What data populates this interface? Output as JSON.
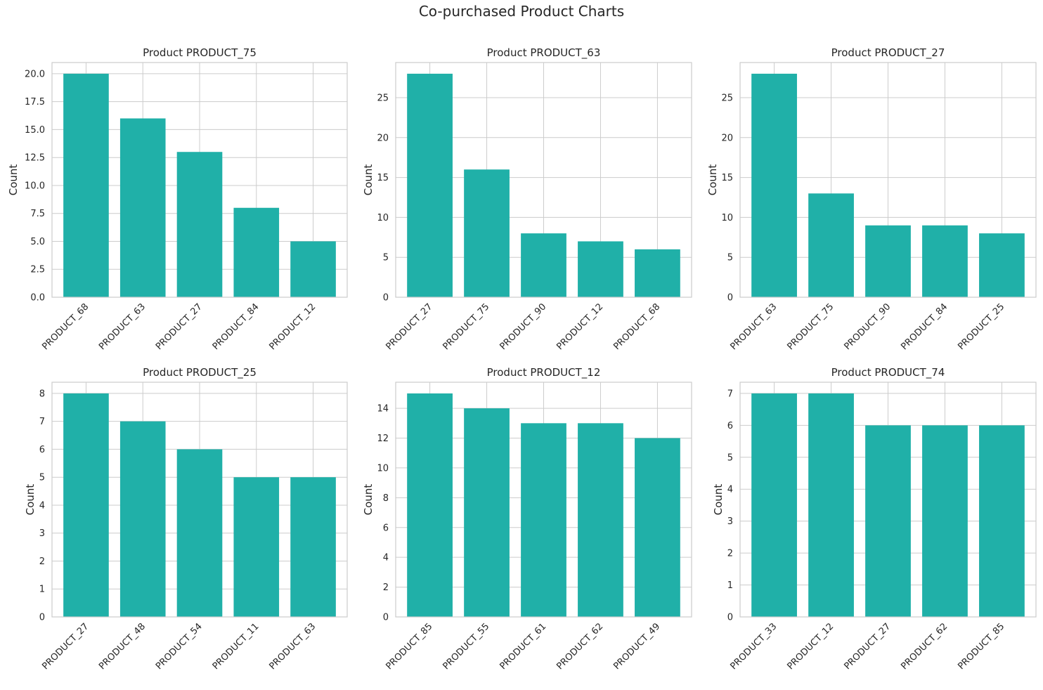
{
  "figure": {
    "title": "Co-purchased Product Charts",
    "bar_color": "#20b0a8",
    "grid_color": "#cccccc",
    "text_color": "#262626"
  },
  "chart_data": [
    {
      "type": "bar",
      "title": "Product PRODUCT_75",
      "xlabel": "",
      "ylabel": "Count",
      "categories": [
        "PRODUCT_68",
        "PRODUCT_63",
        "PRODUCT_27",
        "PRODUCT_84",
        "PRODUCT_12"
      ],
      "values": [
        20,
        16,
        13,
        8,
        5
      ],
      "ylim": [
        0,
        21
      ],
      "yticks": [
        "0.0",
        "2.5",
        "5.0",
        "7.5",
        "10.0",
        "12.5",
        "15.0",
        "17.5",
        "20.0"
      ],
      "grid": true
    },
    {
      "type": "bar",
      "title": "Product PRODUCT_63",
      "xlabel": "",
      "ylabel": "Count",
      "categories": [
        "PRODUCT_27",
        "PRODUCT_75",
        "PRODUCT_90",
        "PRODUCT_12",
        "PRODUCT_68"
      ],
      "values": [
        28,
        16,
        8,
        7,
        6
      ],
      "ylim": [
        0,
        29.4
      ],
      "yticks": [
        "0",
        "5",
        "10",
        "15",
        "20",
        "25"
      ],
      "grid": true
    },
    {
      "type": "bar",
      "title": "Product PRODUCT_27",
      "xlabel": "",
      "ylabel": "Count",
      "categories": [
        "PRODUCT_63",
        "PRODUCT_75",
        "PRODUCT_90",
        "PRODUCT_84",
        "PRODUCT_25"
      ],
      "values": [
        28,
        13,
        9,
        9,
        8
      ],
      "ylim": [
        0,
        29.4
      ],
      "yticks": [
        "0",
        "5",
        "10",
        "15",
        "20",
        "25"
      ],
      "grid": true
    },
    {
      "type": "bar",
      "title": "Product PRODUCT_25",
      "xlabel": "",
      "ylabel": "Count",
      "categories": [
        "PRODUCT_27",
        "PRODUCT_48",
        "PRODUCT_54",
        "PRODUCT_11",
        "PRODUCT_63"
      ],
      "values": [
        8,
        7,
        6,
        5,
        5
      ],
      "ylim": [
        0,
        8.4
      ],
      "yticks": [
        "0",
        "1",
        "2",
        "3",
        "4",
        "5",
        "6",
        "7",
        "8"
      ],
      "grid": true
    },
    {
      "type": "bar",
      "title": "Product PRODUCT_12",
      "xlabel": "",
      "ylabel": "Count",
      "categories": [
        "PRODUCT_85",
        "PRODUCT_55",
        "PRODUCT_61",
        "PRODUCT_62",
        "PRODUCT_49"
      ],
      "values": [
        15,
        14,
        13,
        13,
        12
      ],
      "ylim": [
        0,
        15.75
      ],
      "yticks": [
        "0",
        "2",
        "4",
        "6",
        "8",
        "10",
        "12",
        "14"
      ],
      "grid": true
    },
    {
      "type": "bar",
      "title": "Product PRODUCT_74",
      "xlabel": "",
      "ylabel": "Count",
      "categories": [
        "PRODUCT_33",
        "PRODUCT_12",
        "PRODUCT_27",
        "PRODUCT_62",
        "PRODUCT_85"
      ],
      "values": [
        7,
        7,
        6,
        6,
        6
      ],
      "ylim": [
        0,
        7.35
      ],
      "yticks": [
        "0",
        "1",
        "2",
        "3",
        "4",
        "5",
        "6",
        "7"
      ],
      "grid": true
    }
  ]
}
